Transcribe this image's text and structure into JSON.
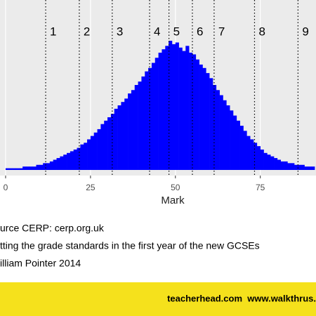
{
  "chart_data": {
    "type": "histogram",
    "x_label": "Mark",
    "bins": [
      0,
      1,
      2,
      3,
      4,
      5,
      6,
      7,
      8,
      9,
      10,
      11,
      12,
      13,
      14,
      15,
      16,
      17,
      18,
      19,
      20,
      21,
      22,
      23,
      24,
      25,
      26,
      27,
      28,
      29,
      30,
      31,
      32,
      33,
      34,
      35,
      36,
      37,
      38,
      39,
      40,
      41,
      42,
      43,
      44,
      45,
      46,
      47,
      48,
      49,
      50,
      51,
      52,
      53,
      54,
      55,
      56,
      57,
      58,
      59,
      60,
      61,
      62,
      63,
      64,
      65,
      66,
      67,
      68,
      69,
      70,
      71,
      72,
      73,
      74,
      75,
      76,
      77,
      78,
      79,
      80,
      81,
      82,
      83,
      84,
      85,
      86,
      87,
      88,
      89,
      90,
      91
    ],
    "values": [
      1,
      1,
      1,
      1,
      1,
      2,
      2,
      2,
      2,
      3,
      3,
      4,
      4,
      5,
      6,
      7,
      8,
      9,
      10,
      11,
      12,
      13,
      15,
      16,
      18,
      20,
      22,
      24,
      27,
      29,
      31,
      33,
      36,
      38,
      40,
      42,
      45,
      47,
      50,
      52,
      55,
      58,
      60,
      63,
      66,
      69,
      71,
      73,
      76,
      74,
      75,
      72,
      70,
      73,
      69,
      68,
      65,
      62,
      60,
      57,
      54,
      50,
      47,
      44,
      41,
      38,
      35,
      32,
      29,
      26,
      23,
      20,
      18,
      16,
      14,
      12,
      10,
      9,
      8,
      7,
      6,
      5,
      5,
      4,
      4,
      3,
      3,
      3,
      2,
      2,
      2
    ],
    "color": "#0000ff",
    "xlim": [
      -1.65,
      91.4
    ],
    "xticks": [
      0,
      25,
      50,
      75
    ],
    "ylim": [
      -3.3,
      100
    ],
    "grid": true,
    "grade_boundaries": [
      {
        "value": 11.8,
        "label": "1"
      },
      {
        "value": 21.7,
        "label": "2"
      },
      {
        "value": 31.4,
        "label": "3"
      },
      {
        "value": 42.4,
        "label": "4"
      },
      {
        "value": 48.1,
        "label": "5"
      },
      {
        "value": 55,
        "label": "6"
      },
      {
        "value": 61.4,
        "label": "7"
      },
      {
        "value": 73.3,
        "label": "8"
      },
      {
        "value": 86.1,
        "label": "9"
      }
    ]
  },
  "notes": [
    "urce CERP: cerp.org.uk",
    "tting the grade standards in the first year of the new GCSEs",
    "illiam Pointer 2014"
  ],
  "banner": "teacherhead.com  www.walkthrus."
}
